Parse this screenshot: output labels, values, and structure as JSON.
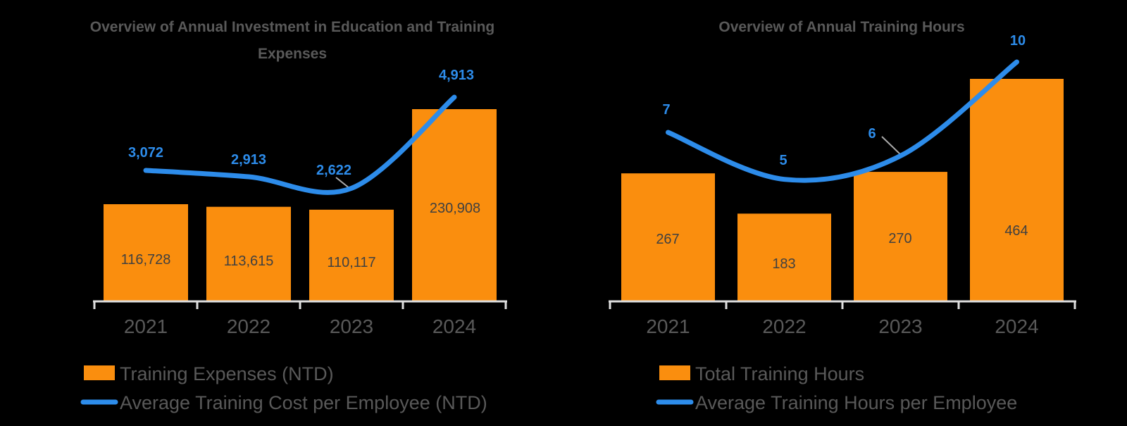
{
  "colors": {
    "background": "#000000",
    "orange": "#FA8E0E",
    "blue": "#2D8CEA",
    "title_text": "#595959",
    "category_text": "#595959",
    "legend_text": "#595959",
    "bar_label_text": "#404040",
    "axis_line": "#DFDFDF",
    "leader_line": "#ABABAB"
  },
  "chart_data": [
    {
      "type": "bar",
      "subtype": "bar-line-combo",
      "title": "Overview of Annual Investment in Education and Training Expenses",
      "title_lines": [
        "Overview of Annual Investment in Education and Training",
        "Expenses"
      ],
      "categories": [
        "2021",
        "2022",
        "2023",
        "2024"
      ],
      "series": [
        {
          "name": "Training Expenses (NTD)",
          "type": "bar",
          "axis": "primary",
          "color": "#FA8E0E",
          "values": [
            116728,
            113615,
            110117,
            230908
          ],
          "labels": [
            "116,728",
            "113,615",
            "110,117",
            "230,908"
          ]
        },
        {
          "name": "Average Training Cost per Employee (NTD)",
          "type": "line",
          "axis": "secondary",
          "color": "#2D8CEA",
          "values": [
            3072,
            2913,
            2622,
            4913
          ],
          "labels": [
            "3,072",
            "2,913",
            "2,622",
            "4,913"
          ]
        }
      ],
      "legend_position": "bottom-left",
      "axes": {
        "x": {
          "visible": true,
          "labels": [
            "2021",
            "2022",
            "2023",
            "2024"
          ]
        },
        "y_primary": {
          "visible": false
        },
        "y_secondary": {
          "visible": false
        }
      },
      "grid": false
    },
    {
      "type": "bar",
      "subtype": "bar-line-combo",
      "title": "Overview of Annual Training Hours",
      "title_lines": [
        "Overview of Annual Training Hours"
      ],
      "categories": [
        "2021",
        "2022",
        "2023",
        "2024"
      ],
      "series": [
        {
          "name": "Total Training Hours",
          "type": "bar",
          "axis": "primary",
          "color": "#FA8E0E",
          "values": [
            267,
            183,
            270,
            464
          ],
          "labels": [
            "267",
            "183",
            "270",
            "464"
          ]
        },
        {
          "name": "Average Training Hours per Employee",
          "type": "line",
          "axis": "secondary",
          "color": "#2D8CEA",
          "values": [
            7,
            5,
            6,
            10
          ],
          "labels": [
            "7",
            "5",
            "6",
            "10"
          ]
        }
      ],
      "legend_position": "bottom-left",
      "axes": {
        "x": {
          "visible": true,
          "labels": [
            "2021",
            "2022",
            "2023",
            "2024"
          ]
        },
        "y_primary": {
          "visible": false
        },
        "y_secondary": {
          "visible": false
        }
      },
      "grid": false
    }
  ]
}
